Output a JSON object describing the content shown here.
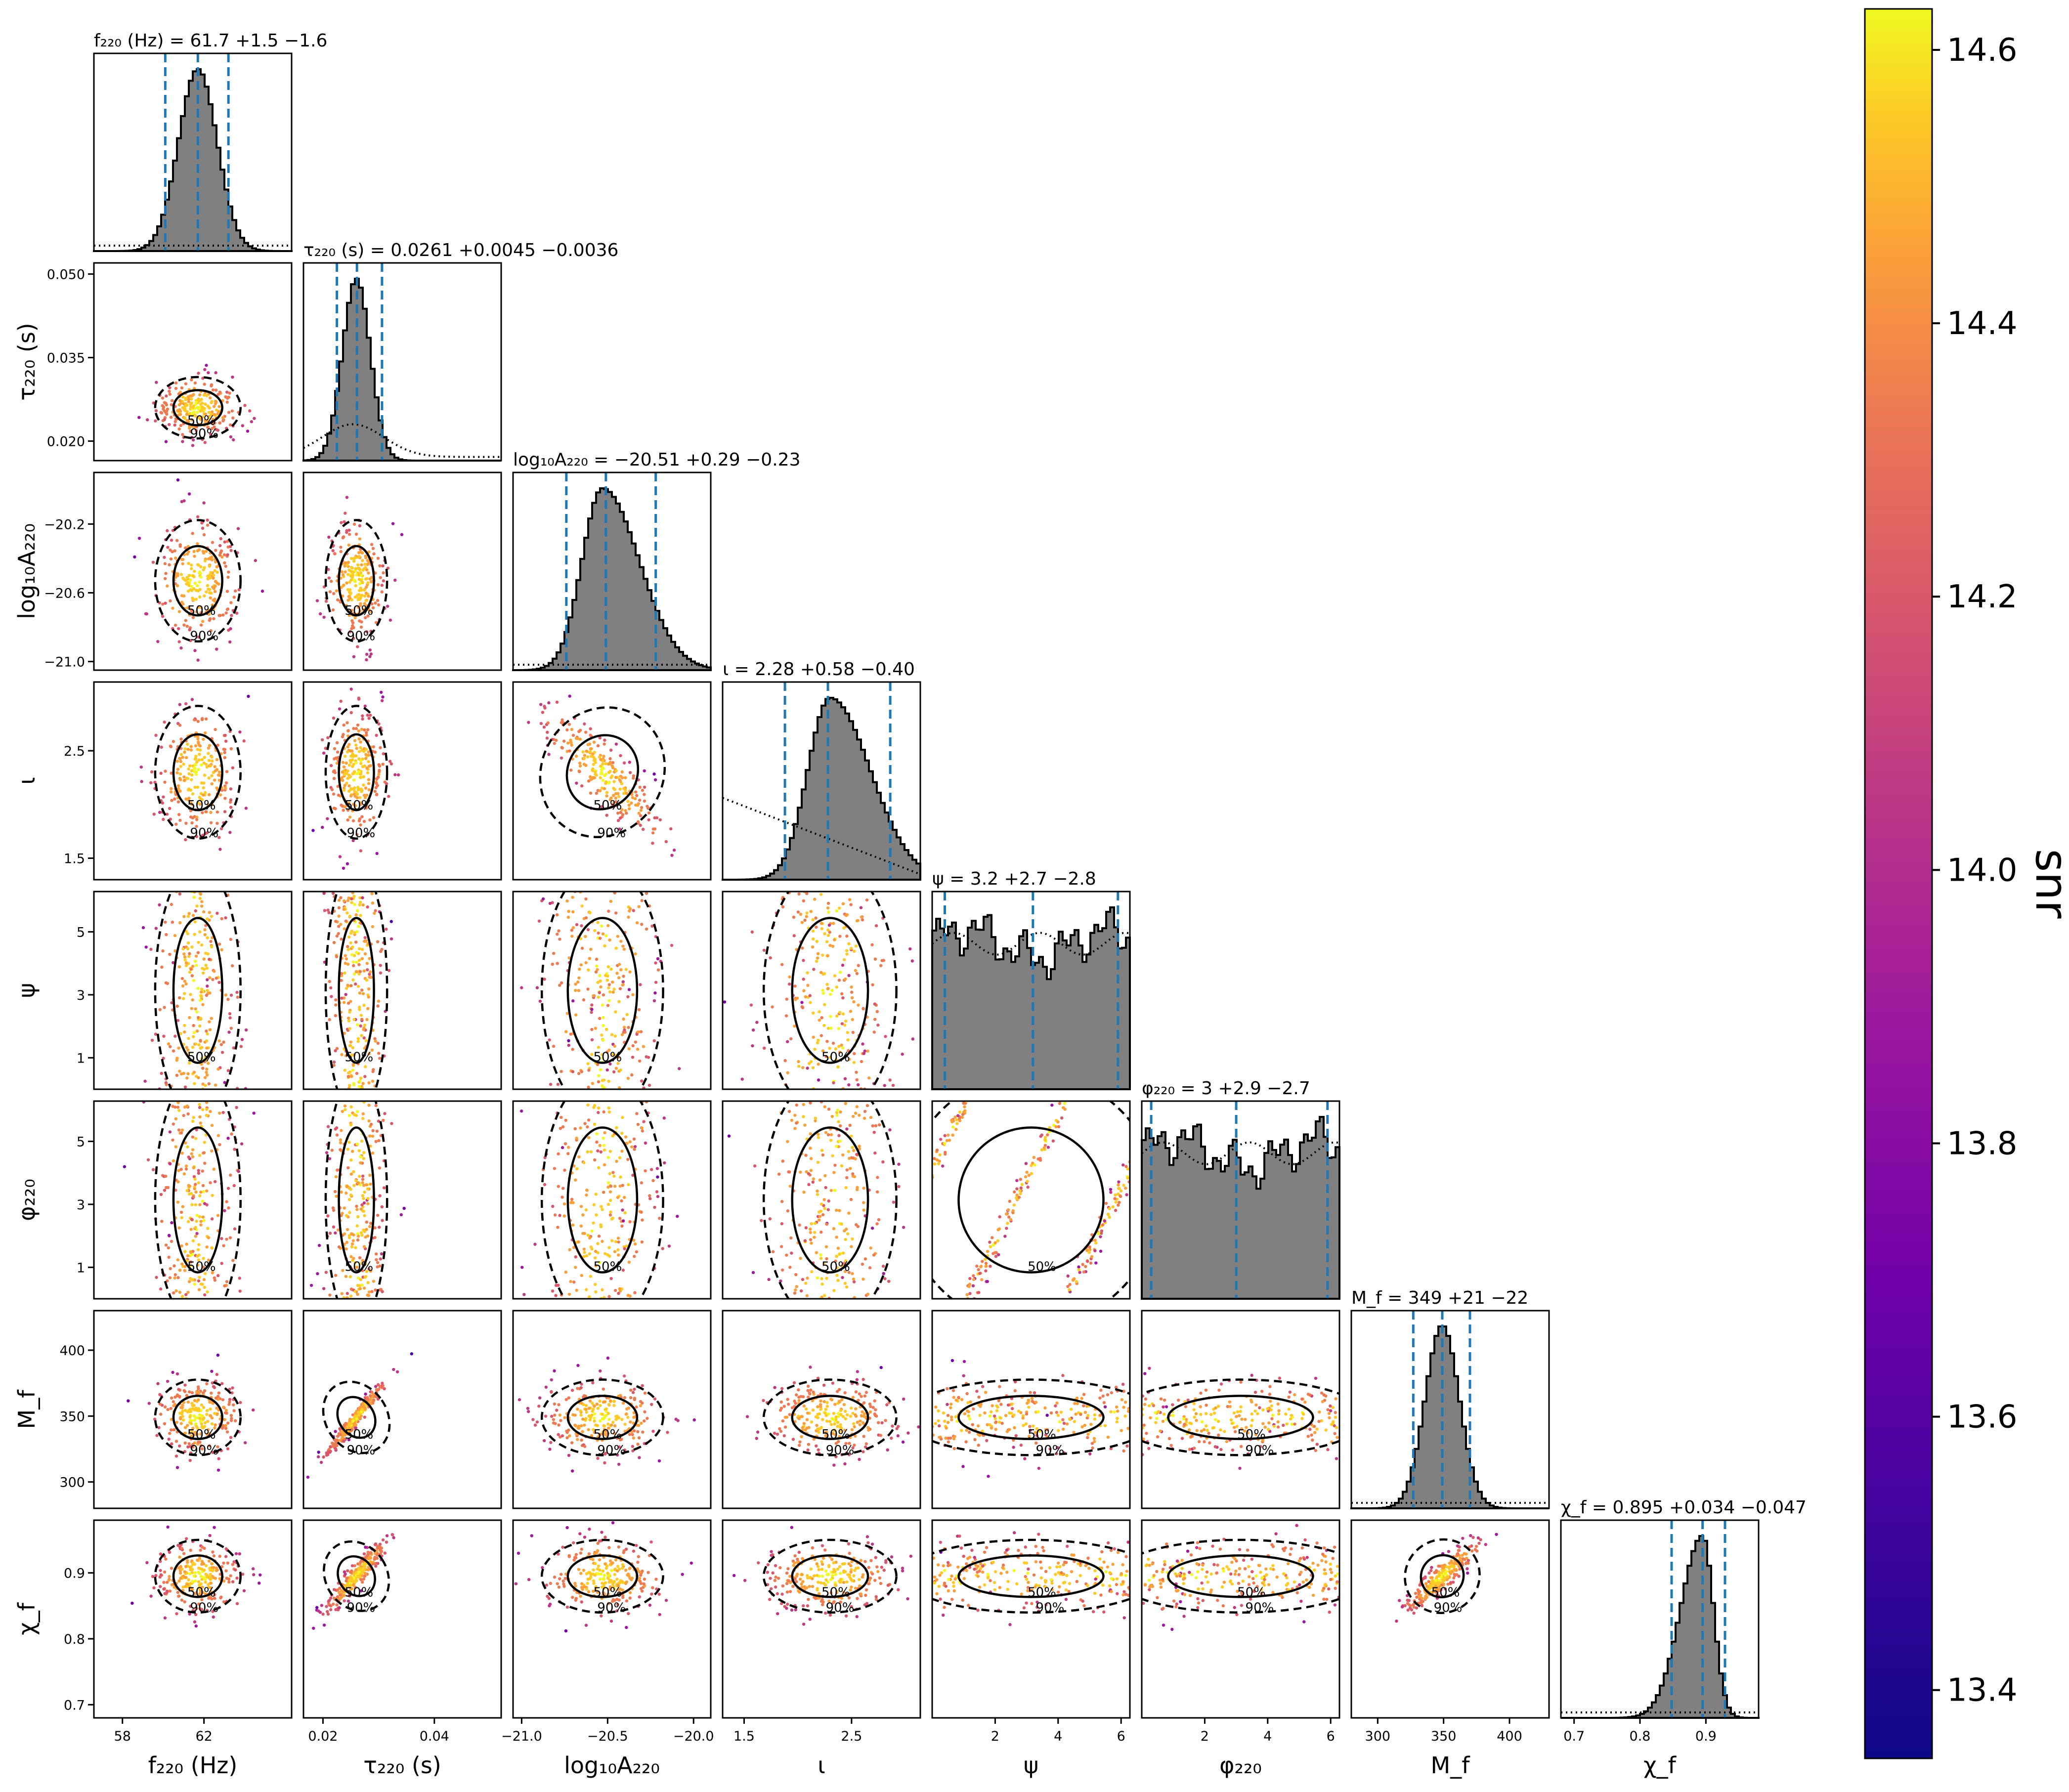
{
  "chart_data": {
    "type": "corner",
    "parameters": [
      {
        "name": "f_220",
        "axis_label": "f₂₂₀ (Hz)",
        "title": "f₂₂₀ (Hz) = 61.7 +1.5 −1.6",
        "median": 61.7,
        "lower": 60.1,
        "upper": 63.2,
        "range": [
          56.6,
          66.3
        ],
        "ticks": [
          58,
          62
        ],
        "tick_labels": [
          "58",
          "62"
        ],
        "hist": {
          "shape": "normal",
          "mu": 61.7,
          "sigma": 0.95
        },
        "prior": "flat"
      },
      {
        "name": "tau_220",
        "axis_label": "τ₂₂₀ (s)",
        "title": "τ₂₂₀ (s) = 0.0261 +0.0045 −0.0036",
        "median": 0.0261,
        "lower": 0.0225,
        "upper": 0.0306,
        "range": [
          0.0165,
          0.052
        ],
        "ticks": [
          0.02,
          0.035,
          0.05
        ],
        "tick_labels": [
          "0.020",
          "0.035",
          "0.050"
        ],
        "bottom_ticks": [
          0.02,
          0.04
        ],
        "bottom_tick_labels": [
          "0.02",
          "0.04"
        ],
        "hist": {
          "shape": "lognormal-ish",
          "mu": 0.026,
          "sigma": 0.0025
        },
        "prior": "rising-then-falling"
      },
      {
        "name": "log10_A_220",
        "axis_label": "log₁₀A₂₂₀",
        "title": "log₁₀A₂₂₀ = −20.51 +0.29 −0.23",
        "median": -20.51,
        "lower": -20.74,
        "upper": -20.22,
        "range": [
          -21.05,
          -19.9
        ],
        "ticks": [
          -21.0,
          -20.6,
          -20.2
        ],
        "tick_labels": [
          "−21.0",
          "−20.6",
          "−20.2"
        ],
        "bottom_ticks": [
          -21.0,
          -20.5,
          -20.0
        ],
        "bottom_tick_labels": [
          "−21.0",
          "−20.5",
          "−20.0"
        ],
        "hist": {
          "shape": "skewed",
          "mu": -20.53,
          "sigma": 0.16
        },
        "prior": "flat"
      },
      {
        "name": "iota",
        "axis_label": "ι",
        "title": "ι = 2.28 +0.58 −0.40",
        "median": 2.28,
        "lower": 1.88,
        "upper": 2.86,
        "range": [
          1.3,
          3.14
        ],
        "ticks": [
          1.5,
          2.5
        ],
        "tick_labels": [
          "1.5",
          "2.5"
        ],
        "left_ticks": [
          1.5,
          2.5
        ],
        "hist": {
          "shape": "skewed",
          "mu": 2.3,
          "sigma": 0.28
        },
        "prior": "falling"
      },
      {
        "name": "psi",
        "axis_label": "ψ",
        "title": "ψ = 3.2 +2.7 −2.8",
        "median": 3.2,
        "lower": 0.4,
        "upper": 5.9,
        "range": [
          0.0,
          6.28
        ],
        "ticks": [
          1,
          3,
          5
        ],
        "tick_labels": [
          "1",
          "3",
          "5"
        ],
        "bottom_ticks": [
          2,
          4,
          6
        ],
        "bottom_tick_labels": [
          "2",
          "4",
          "6"
        ],
        "hist": {
          "shape": "flat"
        },
        "prior": "flat"
      },
      {
        "name": "phi_220",
        "axis_label": "φ₂₂₀",
        "title": "φ₂₂₀ = 3 +2.9 −2.7",
        "median": 3.0,
        "lower": 0.3,
        "upper": 5.9,
        "range": [
          0.0,
          6.28
        ],
        "ticks": [
          1,
          3,
          5
        ],
        "tick_labels": [
          "1",
          "3",
          "5"
        ],
        "bottom_ticks": [
          2,
          4,
          6
        ],
        "bottom_tick_labels": [
          "2",
          "4",
          "6"
        ],
        "hist": {
          "shape": "flat"
        },
        "prior": "flat"
      },
      {
        "name": "M_f",
        "axis_label": "M_f",
        "title": "M_f = 349 +21 −22",
        "median": 349,
        "lower": 327,
        "upper": 370,
        "range": [
          280,
          430
        ],
        "ticks": [
          300,
          350,
          400
        ],
        "tick_labels": [
          "300",
          "350",
          "400"
        ],
        "hist": {
          "shape": "normal",
          "mu": 349,
          "sigma": 13
        },
        "prior": "flat"
      },
      {
        "name": "chi_f",
        "axis_label": "χ_f",
        "title": "χ_f = 0.895 +0.034 −0.047",
        "median": 0.895,
        "lower": 0.848,
        "upper": 0.929,
        "range": [
          0.68,
          0.98
        ],
        "ticks": [
          0.7,
          0.8,
          0.9
        ],
        "tick_labels": [
          "0.7",
          "0.8",
          "0.9"
        ],
        "hist": {
          "shape": "skewed-left",
          "mu": 0.895,
          "sigma": 0.025
        },
        "prior": "flat"
      }
    ],
    "contour_levels": [
      "50%",
      "90%"
    ],
    "colorbar": {
      "label": "snr",
      "min": 13.35,
      "max": 14.63,
      "ticks": [
        13.4,
        13.6,
        13.8,
        14.0,
        14.2,
        14.4,
        14.6
      ],
      "tick_labels": [
        "13.4",
        "13.6",
        "13.8",
        "14.0",
        "14.2",
        "14.4",
        "14.6"
      ],
      "colormap": "plasma"
    },
    "colors": {
      "hist_fill": "#808080",
      "hist_edge": "#000000",
      "quantile_line": "#1f77b4",
      "contour": "#000000"
    }
  }
}
